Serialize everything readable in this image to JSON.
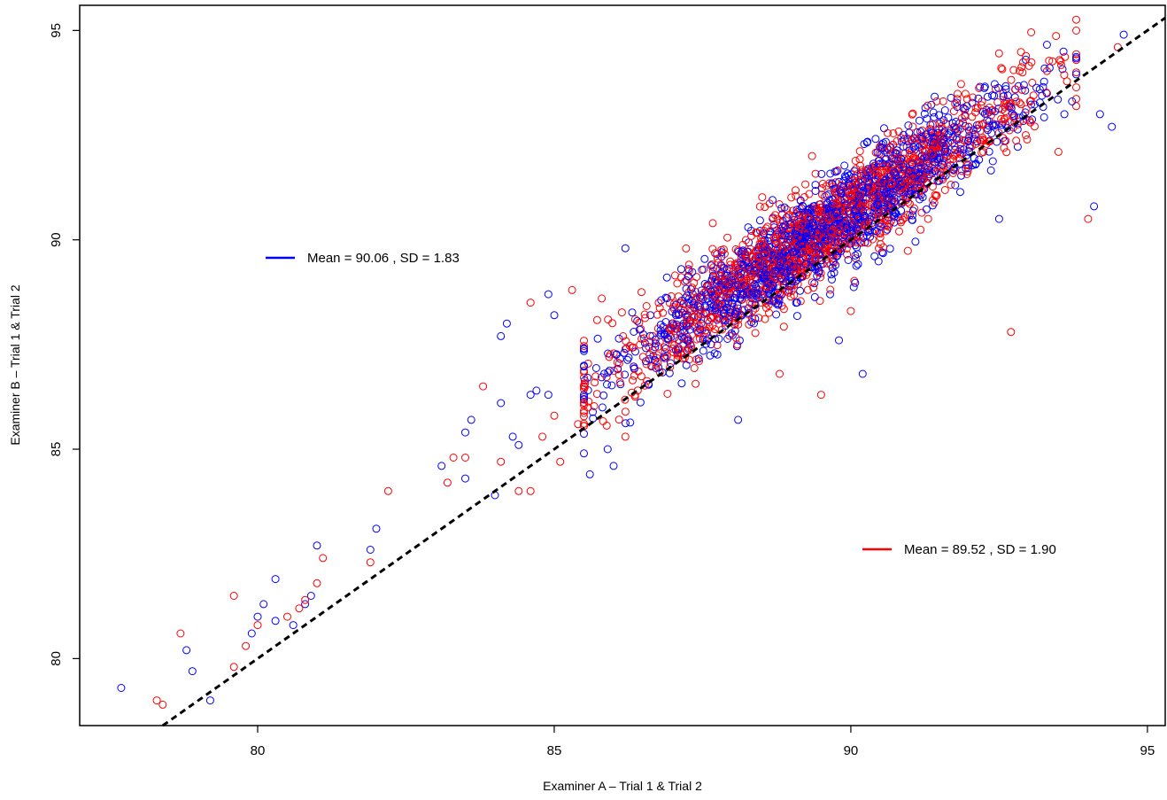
{
  "chart_data": {
    "type": "scatter",
    "title": "",
    "xlabel": "Examiner A – Trial 1 & Trial 2",
    "ylabel": "Examiner B – Trial 1 & Trial 2",
    "xlim": [
      77.0,
      95.3
    ],
    "ylim": [
      78.4,
      95.6
    ],
    "x_ticks": [
      "80",
      "85",
      "90",
      "95"
    ],
    "y_ticks": [
      "80",
      "85",
      "90",
      "95"
    ],
    "grid": false,
    "marker": "open-circle",
    "reference_line": {
      "style": "dashed",
      "color": "#000000",
      "points": [
        [
          78.4,
          78.4
        ],
        [
          95.3,
          95.3
        ]
      ]
    },
    "series": [
      {
        "color": "#0000ff",
        "legend": "Mean = 90.06 , SD = 1.83",
        "mean": 90.06,
        "sd": 1.83,
        "points": [
          [
            77.7,
            79.3
          ],
          [
            78.8,
            80.2
          ],
          [
            78.9,
            79.7
          ],
          [
            79.2,
            79.0
          ],
          [
            79.9,
            80.6
          ],
          [
            80.0,
            81.0
          ],
          [
            80.1,
            81.3
          ],
          [
            80.3,
            81.9
          ],
          [
            80.3,
            80.9
          ],
          [
            80.6,
            80.8
          ],
          [
            80.8,
            81.3
          ],
          [
            80.9,
            81.5
          ],
          [
            81.0,
            82.7
          ],
          [
            81.9,
            82.6
          ],
          [
            82.0,
            83.1
          ],
          [
            83.1,
            84.6
          ],
          [
            83.5,
            84.3
          ],
          [
            83.5,
            85.4
          ],
          [
            83.6,
            85.7
          ],
          [
            84.0,
            83.9
          ],
          [
            84.1,
            86.1
          ],
          [
            84.1,
            87.7
          ],
          [
            84.2,
            88.0
          ],
          [
            84.3,
            85.3
          ],
          [
            84.4,
            85.1
          ],
          [
            84.6,
            86.3
          ],
          [
            84.7,
            86.4
          ],
          [
            84.9,
            86.3
          ],
          [
            84.9,
            88.7
          ],
          [
            85.0,
            88.2
          ],
          [
            85.5,
            84.9
          ],
          [
            85.6,
            84.4
          ],
          [
            85.9,
            85.0
          ],
          [
            86.0,
            84.6
          ],
          [
            86.2,
            89.8
          ],
          [
            86.9,
            89.1
          ],
          [
            88.1,
            85.7
          ],
          [
            89.8,
            87.6
          ],
          [
            90.2,
            86.8
          ],
          [
            92.5,
            90.5
          ],
          [
            93.6,
            93.0
          ],
          [
            94.1,
            90.8
          ],
          [
            94.2,
            93.0
          ],
          [
            94.4,
            92.7
          ],
          [
            94.6,
            94.9
          ]
        ],
        "cluster": {
          "x_center": 89.6,
          "y_center": 90.3,
          "x_sd": 1.7,
          "noise_sd": 0.55,
          "n": 1400,
          "x_range": [
            85.5,
            93.8
          ]
        }
      },
      {
        "color": "#ff0000",
        "legend": "Mean = 89.52 , SD = 1.90",
        "mean": 89.52,
        "sd": 1.9,
        "points": [
          [
            78.3,
            79.0
          ],
          [
            78.4,
            78.9
          ],
          [
            78.7,
            80.6
          ],
          [
            79.6,
            81.5
          ],
          [
            79.6,
            79.8
          ],
          [
            79.8,
            80.3
          ],
          [
            80.0,
            80.8
          ],
          [
            80.5,
            81.0
          ],
          [
            80.7,
            81.2
          ],
          [
            80.8,
            81.4
          ],
          [
            81.0,
            81.8
          ],
          [
            81.1,
            82.4
          ],
          [
            81.9,
            82.3
          ],
          [
            82.2,
            84.0
          ],
          [
            83.2,
            84.2
          ],
          [
            83.3,
            84.8
          ],
          [
            83.5,
            84.8
          ],
          [
            83.8,
            86.5
          ],
          [
            84.1,
            84.7
          ],
          [
            84.4,
            84.0
          ],
          [
            84.6,
            84.0
          ],
          [
            84.6,
            88.5
          ],
          [
            84.8,
            85.3
          ],
          [
            85.0,
            85.8
          ],
          [
            85.1,
            84.7
          ],
          [
            85.3,
            88.8
          ],
          [
            85.4,
            85.6
          ],
          [
            85.8,
            88.6
          ],
          [
            86.2,
            85.3
          ],
          [
            88.8,
            86.8
          ],
          [
            89.5,
            86.3
          ],
          [
            90.0,
            88.3
          ],
          [
            92.7,
            87.8
          ],
          [
            93.5,
            92.1
          ],
          [
            94.0,
            90.5
          ],
          [
            94.5,
            94.6
          ]
        ],
        "cluster": {
          "x_center": 89.5,
          "y_center": 90.2,
          "x_sd": 1.75,
          "noise_sd": 0.6,
          "n": 1400,
          "x_range": [
            85.5,
            93.8
          ]
        }
      }
    ]
  }
}
